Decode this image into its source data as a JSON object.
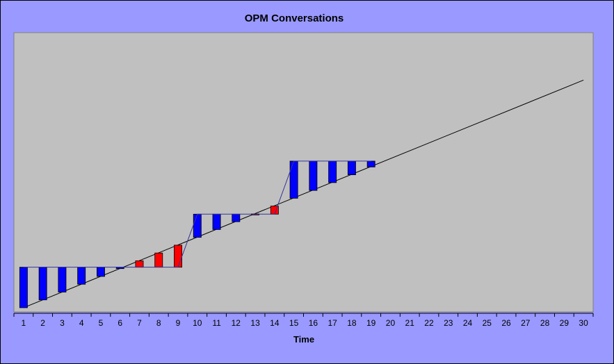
{
  "chart_data": {
    "type": "bar",
    "title": "OPM Conversations",
    "xlabel": "Time",
    "ylabel": "",
    "x_categories": [
      "1",
      "2",
      "3",
      "4",
      "5",
      "6",
      "7",
      "8",
      "9",
      "10",
      "11",
      "12",
      "13",
      "14",
      "15",
      "16",
      "17",
      "18",
      "19",
      "20",
      "21",
      "22",
      "23",
      "24",
      "25",
      "26",
      "27",
      "28",
      "29",
      "30"
    ],
    "y_range": [
      0,
      10
    ],
    "grid": false,
    "legend": "none",
    "trend_line": {
      "x": [
        1,
        30
      ],
      "y": [
        0.15,
        8.3
      ]
    },
    "step_line": {
      "x": [
        1,
        2,
        3,
        4,
        5,
        6,
        7,
        8,
        9,
        10,
        11,
        12,
        13,
        14,
        15,
        16,
        17,
        18,
        19
      ],
      "y": [
        1.6,
        1.6,
        1.6,
        1.6,
        1.6,
        1.6,
        1.6,
        1.6,
        1.6,
        3.5,
        3.5,
        3.5,
        3.5,
        3.5,
        5.4,
        5.4,
        5.4,
        5.4,
        5.4
      ]
    },
    "bars": {
      "x": [
        1,
        2,
        3,
        4,
        5,
        6,
        7,
        8,
        9,
        10,
        11,
        12,
        13,
        14,
        15,
        16,
        17,
        18,
        19
      ],
      "base": [
        1.6,
        1.6,
        1.6,
        1.6,
        1.6,
        1.6,
        1.6,
        1.6,
        1.6,
        3.5,
        3.5,
        3.5,
        3.5,
        3.5,
        5.4,
        5.4,
        5.4,
        5.4,
        5.4
      ],
      "target": [
        0.15,
        0.43,
        0.71,
        0.99,
        1.27,
        1.55,
        1.83,
        2.11,
        2.39,
        2.67,
        2.95,
        3.23,
        3.51,
        3.79,
        4.07,
        4.35,
        4.63,
        4.91,
        5.19
      ]
    },
    "colors": {
      "below": "#0000ff",
      "above": "#ff0000",
      "step_line": "#333399",
      "trend_line": "#000000",
      "plot_background": "#c0c0c0",
      "chart_background": "#9999ff"
    }
  }
}
